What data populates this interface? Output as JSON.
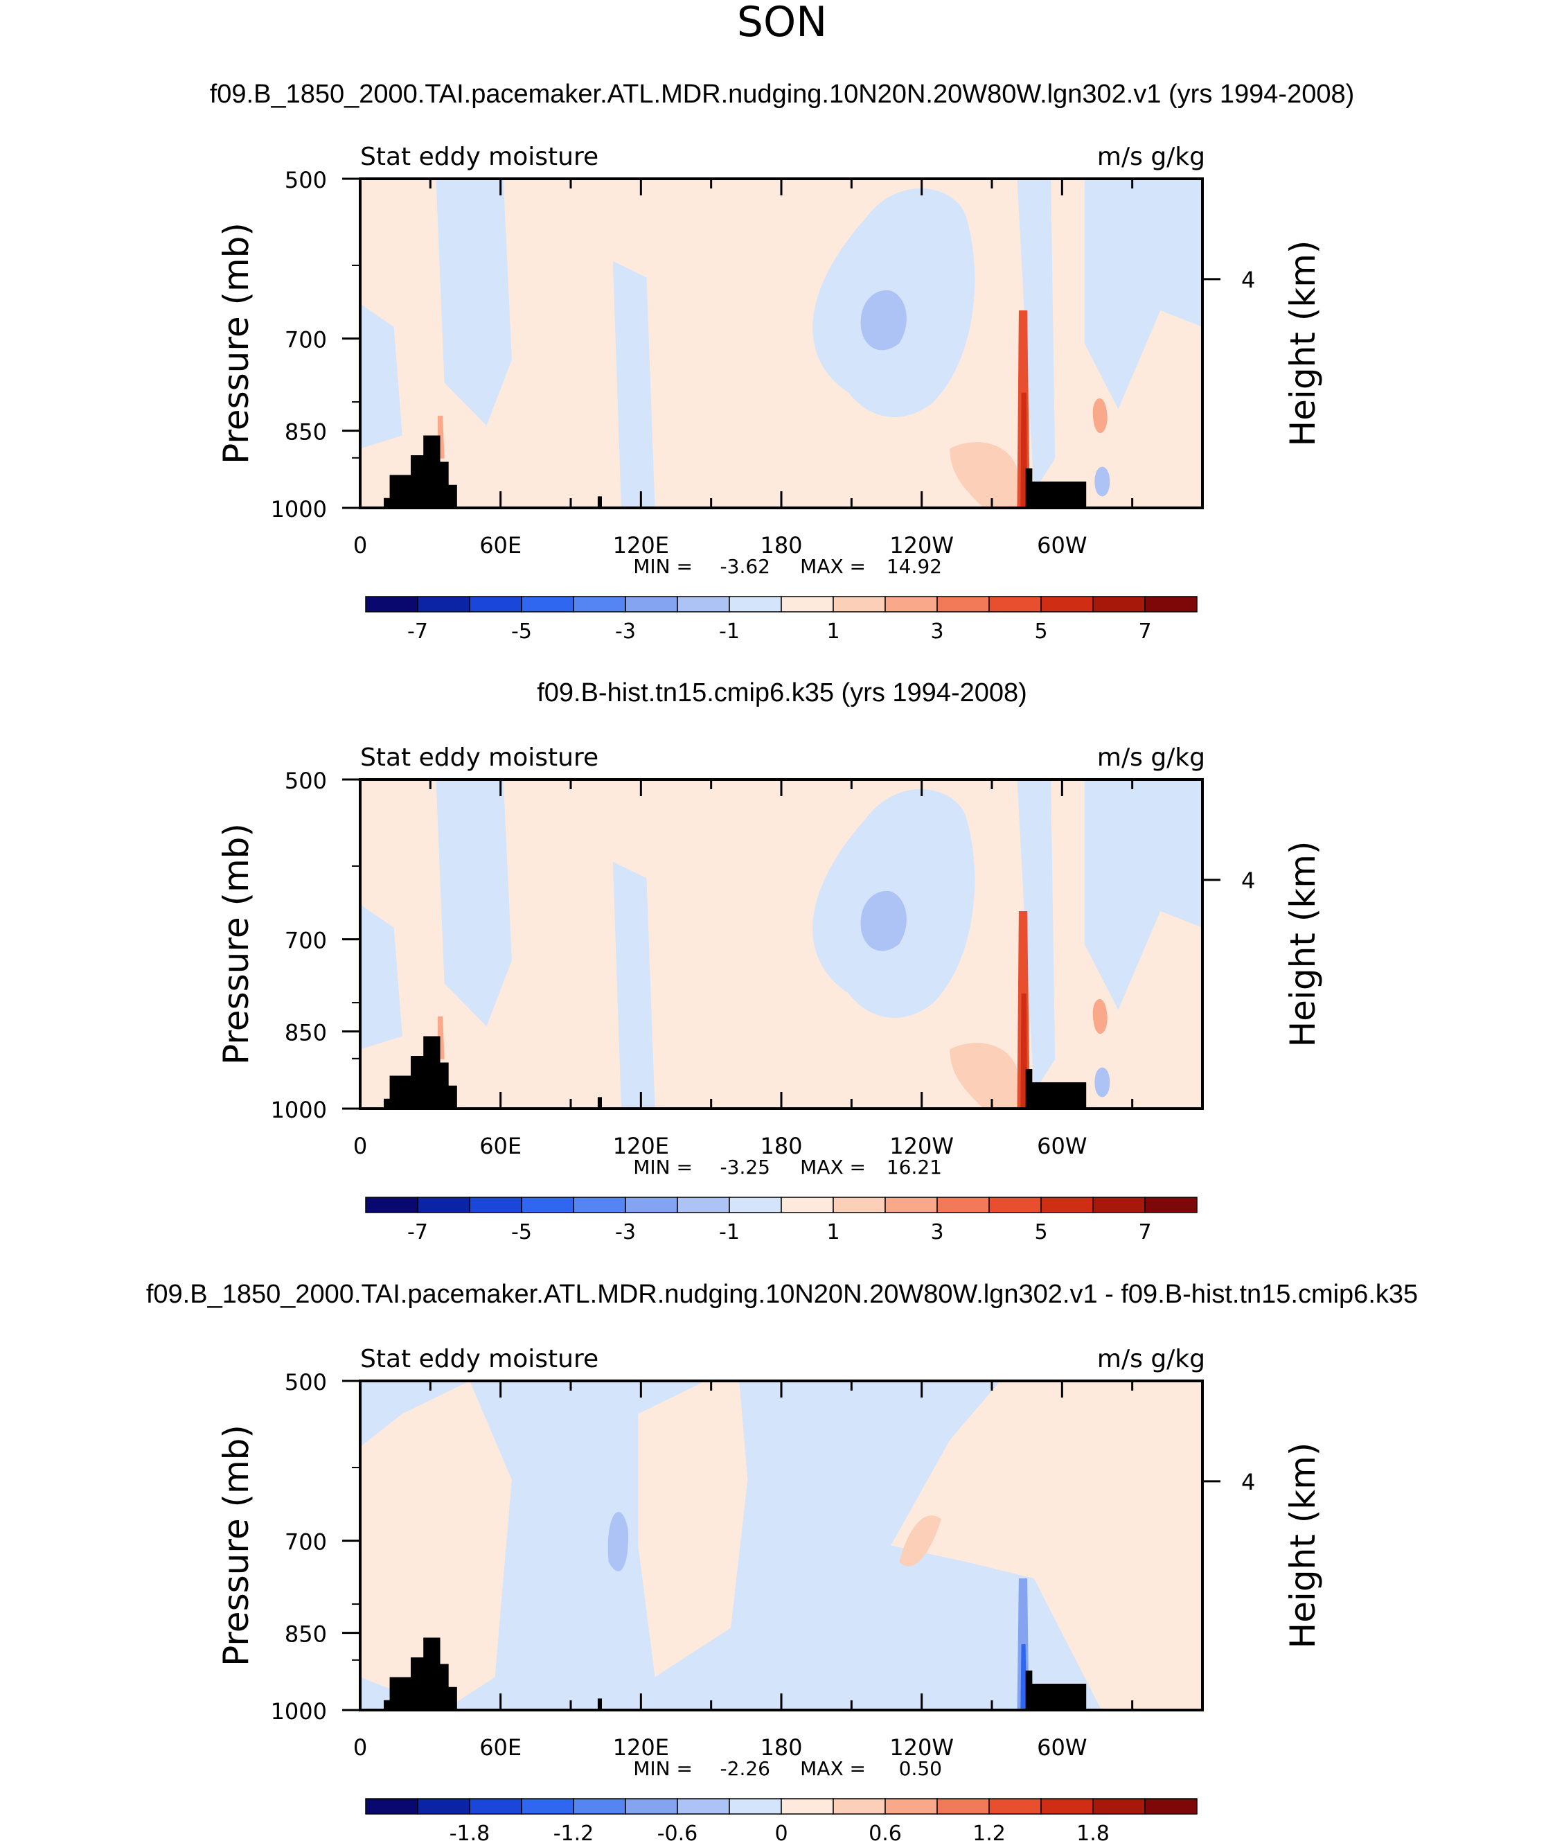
{
  "season": "SON",
  "colors": {
    "scale": [
      "#08086e",
      "#0b24a6",
      "#1a47d9",
      "#2f67f0",
      "#5485f2",
      "#84a4f2",
      "#aec3f5",
      "#d3e4fb",
      "#feeadd",
      "#fcd0b8",
      "#f9a98a",
      "#f37a58",
      "#e84f2e",
      "#cf2e14",
      "#a8180a",
      "#7e0808"
    ],
    "black_mask": "#000000"
  },
  "chart_data": [
    {
      "type": "heatmap",
      "title": "f09.B_1850_2000.TAI.pacemaker.ATL.MDR.nudging.10N20N.20W80W.lgn302.v1 (yrs 1994-2008)",
      "left_label": "Stat eddy moisture",
      "right_label": "m/s g/kg",
      "ylabel": "Pressure (mb)",
      "ylabel_right": "Height (km)",
      "yticks": [
        "500",
        "700",
        "850",
        "1000"
      ],
      "yticks_right": [
        "4"
      ],
      "xticks": [
        "0",
        "60E",
        "120E",
        "180",
        "120W",
        "60W"
      ],
      "min_label": "MIN =",
      "min_value": "-3.62",
      "max_label": "MAX =",
      "max_value": "14.92",
      "colorbar_labels": [
        "-7",
        "-5",
        "-3",
        "-1",
        "1",
        "3",
        "5",
        "7"
      ]
    },
    {
      "type": "heatmap",
      "title": "f09.B-hist.tn15.cmip6.k35 (yrs 1994-2008)",
      "left_label": "Stat eddy moisture",
      "right_label": "m/s g/kg",
      "ylabel": "Pressure (mb)",
      "ylabel_right": "Height (km)",
      "yticks": [
        "500",
        "700",
        "850",
        "1000"
      ],
      "yticks_right": [
        "4"
      ],
      "xticks": [
        "0",
        "60E",
        "120E",
        "180",
        "120W",
        "60W"
      ],
      "min_label": "MIN =",
      "min_value": "-3.25",
      "max_label": "MAX =",
      "max_value": "16.21",
      "colorbar_labels": [
        "-7",
        "-5",
        "-3",
        "-1",
        "1",
        "3",
        "5",
        "7"
      ]
    },
    {
      "type": "heatmap",
      "title": "f09.B_1850_2000.TAI.pacemaker.ATL.MDR.nudging.10N20N.20W80W.lgn302.v1 - f09.B-hist.tn15.cmip6.k35",
      "left_label": "Stat eddy moisture",
      "right_label": "m/s g/kg",
      "ylabel": "Pressure (mb)",
      "ylabel_right": "Height (km)",
      "yticks": [
        "500",
        "700",
        "850",
        "1000"
      ],
      "yticks_right": [
        "4"
      ],
      "xticks": [
        "0",
        "60E",
        "120E",
        "180",
        "120W",
        "60W"
      ],
      "min_label": "MIN =",
      "min_value": "-2.26",
      "max_label": "MAX =",
      "max_value": "0.50",
      "colorbar_labels": [
        "-1.8",
        "-1.2",
        "-0.6",
        "0",
        "0.6",
        "1.2",
        "1.8"
      ]
    }
  ]
}
